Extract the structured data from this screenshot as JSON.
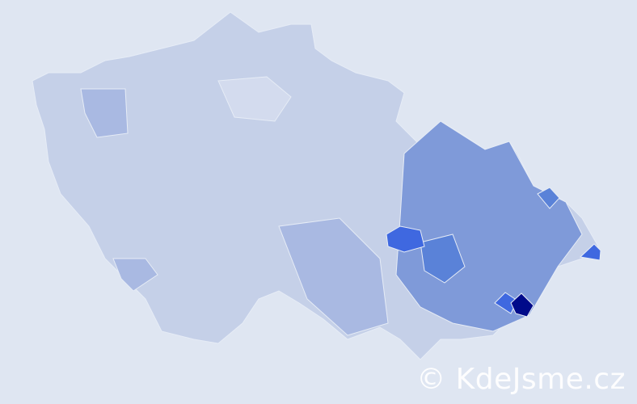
{
  "watermark": "© KdeJsme.cz",
  "colors": {
    "background": "#dfe6f2",
    "base": "#c5d0e8",
    "light": "#d3dbee",
    "medium": "#a9b9e2",
    "strong": "#7f9ad9",
    "bright": "#5a82d8",
    "vivid": "#3f68e0",
    "darkest": "#000a8a"
  }
}
